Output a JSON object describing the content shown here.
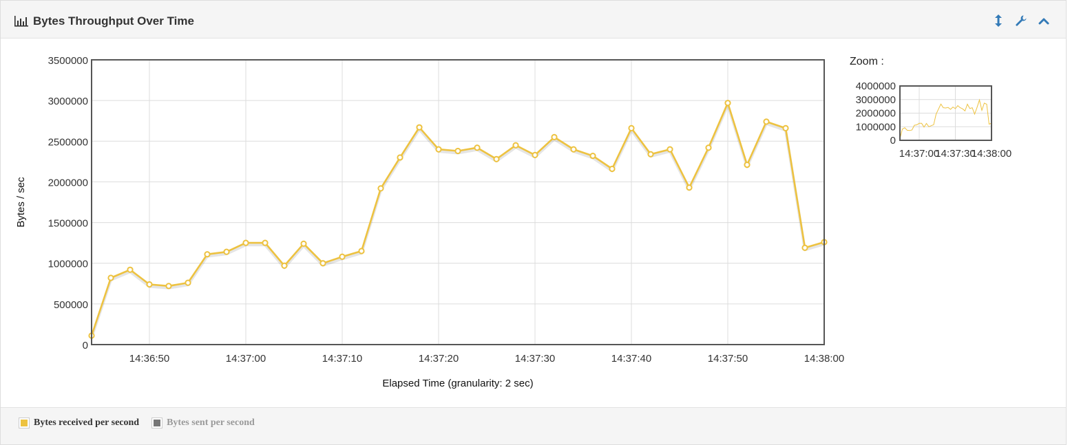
{
  "panel": {
    "title": "Bytes Throughput Over Time",
    "tools": [
      "expand-vertical-icon",
      "wrench-icon",
      "chevron-up-icon"
    ]
  },
  "zoom": {
    "label": "Zoom :",
    "yticks": [
      "4000000",
      "3000000",
      "2000000",
      "1000000",
      "0"
    ],
    "xticks": [
      "14:37:00",
      "14:37:30",
      "14:38:00"
    ],
    "ylim": [
      0,
      4000000
    ]
  },
  "legend": [
    {
      "label": "Bytes received per second",
      "color": "#edc240",
      "active": true
    },
    {
      "label": "Bytes sent per second",
      "color": "#777777",
      "active": false
    }
  ],
  "chart_data": {
    "type": "line",
    "title": "Bytes Throughput Over Time",
    "xlabel": "Elapsed Time (granularity: 2 sec)",
    "ylabel": "Bytes / sec",
    "ylim": [
      0,
      3500000
    ],
    "xlim": [
      "14:36:44",
      "14:38:00"
    ],
    "yticks": [
      "3500000",
      "3000000",
      "2500000",
      "2000000",
      "1500000",
      "1000000",
      "500000",
      "0"
    ],
    "xticks": [
      "14:36:50",
      "14:37:00",
      "14:37:10",
      "14:37:20",
      "14:37:30",
      "14:37:40",
      "14:37:50",
      "14:38:00"
    ],
    "grid": true,
    "series": [
      {
        "name": "Bytes received per second",
        "color": "#edc240",
        "x": [
          "14:36:44",
          "14:36:46",
          "14:36:48",
          "14:36:50",
          "14:36:52",
          "14:36:54",
          "14:36:56",
          "14:36:58",
          "14:37:00",
          "14:37:02",
          "14:37:04",
          "14:37:06",
          "14:37:08",
          "14:37:10",
          "14:37:12",
          "14:37:14",
          "14:37:16",
          "14:37:18",
          "14:37:20",
          "14:37:22",
          "14:37:24",
          "14:37:26",
          "14:37:28",
          "14:37:30",
          "14:37:32",
          "14:37:34",
          "14:37:36",
          "14:37:38",
          "14:37:40",
          "14:37:42",
          "14:37:44",
          "14:37:46",
          "14:37:48",
          "14:37:50",
          "14:37:52",
          "14:37:54",
          "14:37:56",
          "14:37:58",
          "14:38:00"
        ],
        "values": [
          110000,
          820000,
          920000,
          740000,
          720000,
          760000,
          1110000,
          1140000,
          1250000,
          1250000,
          970000,
          1240000,
          1000000,
          1080000,
          1150000,
          1920000,
          2300000,
          2670000,
          2400000,
          2380000,
          2420000,
          2280000,
          2450000,
          2330000,
          2550000,
          2400000,
          2320000,
          2160000,
          2660000,
          2340000,
          2400000,
          1930000,
          2420000,
          2970000,
          2210000,
          2740000,
          2660000,
          1190000,
          1260000
        ]
      }
    ]
  }
}
